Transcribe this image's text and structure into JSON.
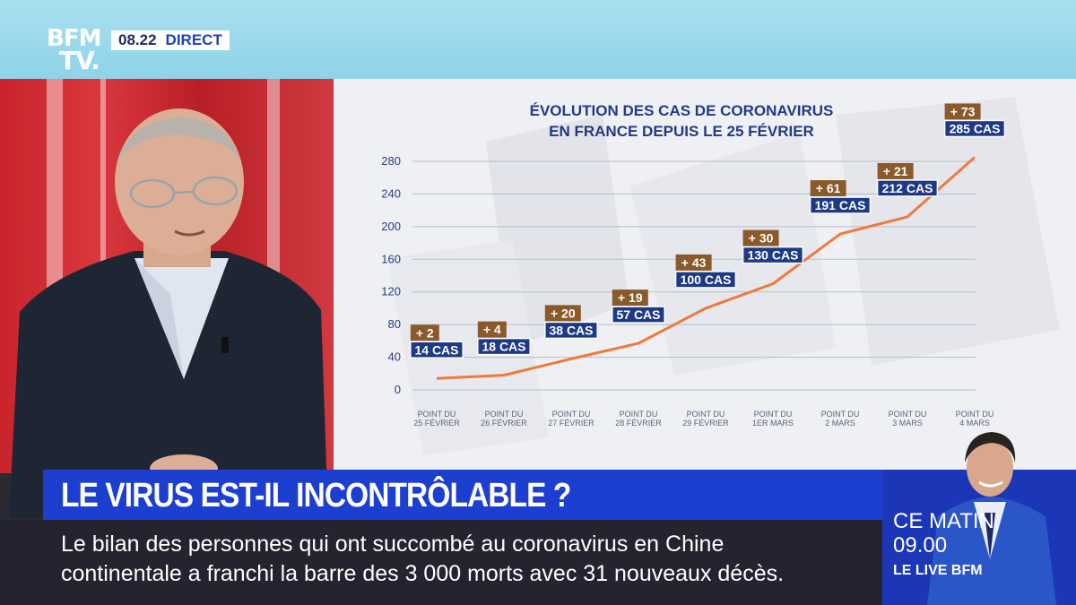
{
  "channel": {
    "logo_line1": "BFM",
    "logo_line2": "TV.",
    "time": "08.22",
    "live_label": "DIRECT"
  },
  "headline": "LE VIRUS EST-IL INCONTRÔLABLE ?",
  "ticker": {
    "line1": "Le bilan des personnes qui ont succombé au coronavirus en Chine",
    "line2": "continentale a franchi la barre des 3 000 morts avec 31 nouveaux décès."
  },
  "promo": {
    "line1": "CE MATIN",
    "line2": "09.00",
    "line3": "LE LIVE BFM"
  },
  "colors": {
    "accent_blue": "#1d3fd0",
    "line_orange": "#ef7a3a",
    "increase_brown": "#8a5a2b",
    "cases_navy": "#1e3a86"
  },
  "chart_data": {
    "type": "line",
    "title_lines": [
      "ÉVOLUTION DES CAS DE CORONAVIRUS",
      "EN FRANCE DEPUIS LE 25 FÉVRIER"
    ],
    "categories": [
      [
        "POINT DU",
        "25 FÉVRIER"
      ],
      [
        "POINT DU",
        "26 FÉVRIER"
      ],
      [
        "POINT DU",
        "27 FÉVRIER"
      ],
      [
        "POINT DU",
        "28 FÉVRIER"
      ],
      [
        "POINT DU",
        "29 FÉVRIER"
      ],
      [
        "POINT DU",
        "1ER MARS"
      ],
      [
        "POINT DU",
        "2 MARS"
      ],
      [
        "POINT DU",
        "3 MARS"
      ],
      [
        "POINT DU",
        "4 MARS"
      ]
    ],
    "values": [
      14,
      18,
      38,
      57,
      100,
      130,
      191,
      212,
      285
    ],
    "case_labels": [
      "14 CAS",
      "18 CAS",
      "38 CAS",
      "57 CAS",
      "100 CAS",
      "130 CAS",
      "191 CAS",
      "212 CAS",
      "285 CAS"
    ],
    "increase_labels": [
      "+ 2",
      "+ 4",
      "+ 20",
      "+ 19",
      "+ 43",
      "+ 30",
      "+ 61",
      "+ 21",
      "+ 73"
    ],
    "yticks": [
      0,
      40,
      80,
      120,
      160,
      200,
      240,
      280
    ],
    "ylim": [
      0,
      280
    ],
    "grid": true
  }
}
